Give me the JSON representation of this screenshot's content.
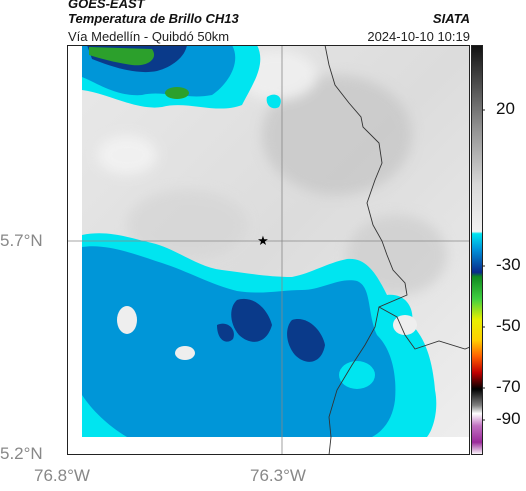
{
  "header": {
    "satellite": "GOES-EAST",
    "product": "Temperatura de Brillo CH13",
    "route": "Vía Medellín - Quibdó 50km",
    "agency": "SIATA",
    "datetime": "2024-10-10 10:19"
  },
  "axes": {
    "lat_ticks": [
      "5.7°N",
      "5.2°N"
    ],
    "lon_ticks": [
      "76.8°W",
      "76.3°W"
    ]
  },
  "colorbar": {
    "ticks": [
      "20",
      "-30",
      "-50",
      "-70",
      "-90"
    ]
  },
  "marker": {
    "symbol": "★"
  },
  "colors": {
    "frame": "#222222",
    "grid": "#888888",
    "border": "#333333",
    "cloud_cyan": "#00e5f0",
    "cloud_blue": "#0096d8",
    "cloud_deep": "#0a3a8a",
    "cloud_green": "#2ca02c"
  }
}
